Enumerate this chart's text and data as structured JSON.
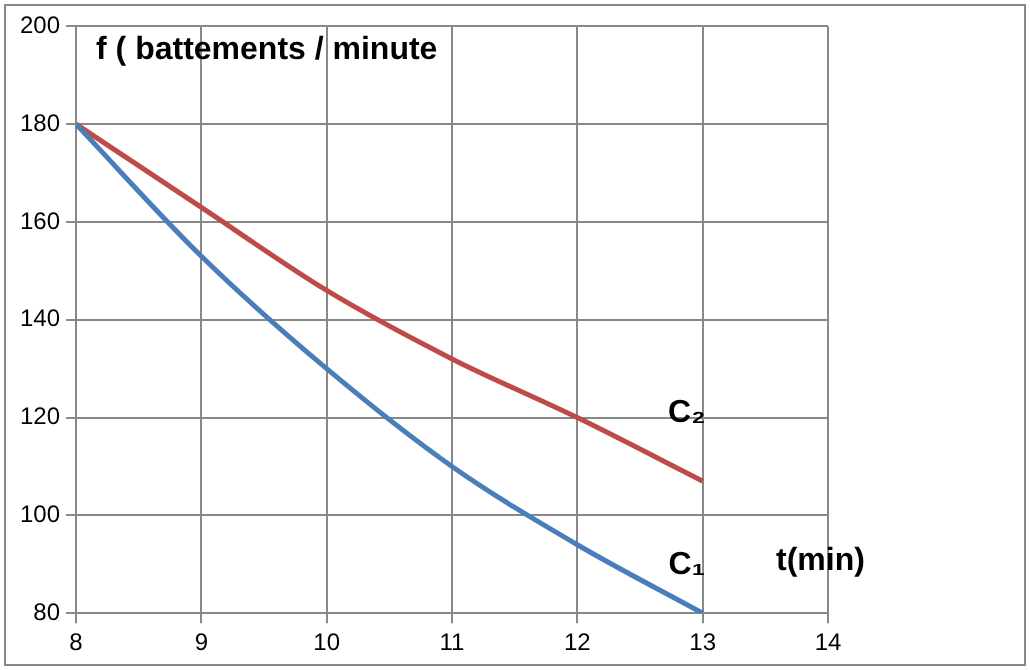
{
  "chart_data": {
    "type": "line",
    "ylabel": "f ( battements / minute",
    "xlabel": "t(min)",
    "x": [
      8,
      9,
      10,
      11,
      12,
      13
    ],
    "series": [
      {
        "name": "C₁",
        "color": "#4a7ebb",
        "values": [
          180,
          153,
          130,
          110,
          94,
          80
        ]
      },
      {
        "name": "C₂",
        "color": "#be4b48",
        "values": [
          180,
          163,
          146,
          132,
          120,
          107
        ]
      }
    ],
    "xlim": [
      8,
      14
    ],
    "xticks": [
      8,
      9,
      10,
      11,
      12,
      13,
      14
    ],
    "ylim": [
      80,
      200
    ],
    "yticks": [
      80,
      100,
      120,
      140,
      160,
      180,
      200
    ],
    "grid": true,
    "legend": false,
    "marker": "none",
    "line_style": "solid"
  }
}
